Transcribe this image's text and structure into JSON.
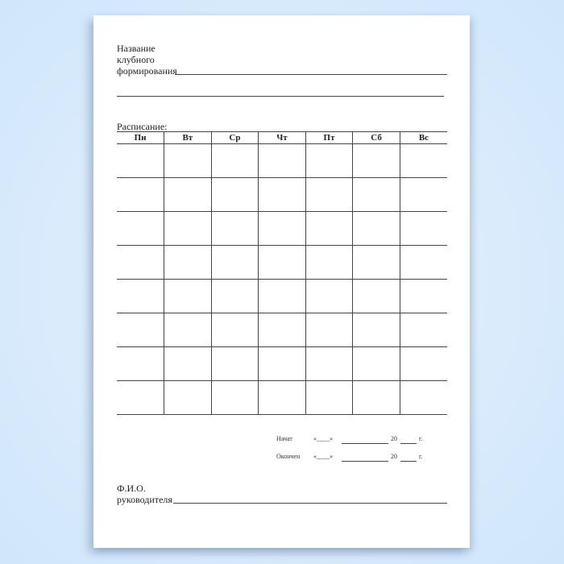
{
  "form": {
    "club_name_label": [
      "Название",
      "клубного",
      "формирования"
    ],
    "schedule_label": "Расписание:",
    "days": [
      "Пн",
      "Вт",
      "Ср",
      "Чт",
      "Пт",
      "Сб",
      "Вс"
    ],
    "row_count": 8,
    "started_label": "Начат",
    "ended_label": "Окончен",
    "date_quote": "«____»",
    "year_prefix": "20",
    "year_suffix": "г.",
    "leader_label": [
      "Ф.И.О.",
      "руководителя"
    ]
  }
}
